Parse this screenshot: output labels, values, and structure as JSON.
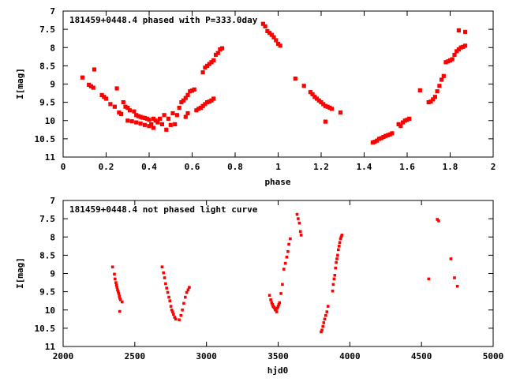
{
  "chart_data": [
    {
      "type": "scatter",
      "title": "181459+0448.4 phased with P=333.0day",
      "xlabel": "phase",
      "ylabel": "I[mag]",
      "xlim": [
        0,
        2
      ],
      "ylim": [
        11,
        7
      ],
      "y_inverted": true,
      "xticks": [
        "0",
        "0.2",
        "0.4",
        "0.6",
        "0.8",
        "1",
        "1.2",
        "1.4",
        "1.6",
        "1.8",
        "2"
      ],
      "yticks": [
        "7",
        "7.5",
        "8",
        "8.5",
        "9",
        "9.5",
        "10",
        "10.5",
        "11"
      ],
      "grid": false,
      "marker_color": "#ff0000",
      "points": [
        [
          0.09,
          8.82
        ],
        [
          0.12,
          9.02
        ],
        [
          0.13,
          9.06
        ],
        [
          0.14,
          9.1
        ],
        [
          0.145,
          8.6
        ],
        [
          0.18,
          9.3
        ],
        [
          0.19,
          9.35
        ],
        [
          0.2,
          9.4
        ],
        [
          0.22,
          9.55
        ],
        [
          0.24,
          9.62
        ],
        [
          0.25,
          9.12
        ],
        [
          0.26,
          9.78
        ],
        [
          0.27,
          9.82
        ],
        [
          0.28,
          9.5
        ],
        [
          0.29,
          9.62
        ],
        [
          0.3,
          9.65
        ],
        [
          0.3,
          10.0
        ],
        [
          0.31,
          9.72
        ],
        [
          0.32,
          10.02
        ],
        [
          0.33,
          9.75
        ],
        [
          0.34,
          10.05
        ],
        [
          0.34,
          9.85
        ],
        [
          0.35,
          9.88
        ],
        [
          0.36,
          9.9
        ],
        [
          0.36,
          10.08
        ],
        [
          0.37,
          9.92
        ],
        [
          0.38,
          9.93
        ],
        [
          0.38,
          10.12
        ],
        [
          0.39,
          9.95
        ],
        [
          0.4,
          9.98
        ],
        [
          0.4,
          10.15
        ],
        [
          0.41,
          10.1
        ],
        [
          0.42,
          9.95
        ],
        [
          0.42,
          10.2
        ],
        [
          0.43,
          10.0
        ],
        [
          0.44,
          10.05
        ],
        [
          0.45,
          9.95
        ],
        [
          0.46,
          10.1
        ],
        [
          0.47,
          9.85
        ],
        [
          0.48,
          10.25
        ],
        [
          0.49,
          9.95
        ],
        [
          0.5,
          10.12
        ],
        [
          0.51,
          9.8
        ],
        [
          0.52,
          10.1
        ],
        [
          0.53,
          9.85
        ],
        [
          0.54,
          9.65
        ],
        [
          0.55,
          9.5
        ],
        [
          0.56,
          9.45
        ],
        [
          0.57,
          9.38
        ],
        [
          0.58,
          9.3
        ],
        [
          0.59,
          9.2
        ],
        [
          0.6,
          9.18
        ],
        [
          0.61,
          9.15
        ],
        [
          0.57,
          9.9
        ],
        [
          0.58,
          9.8
        ],
        [
          0.62,
          9.72
        ],
        [
          0.63,
          9.68
        ],
        [
          0.64,
          9.65
        ],
        [
          0.65,
          9.6
        ],
        [
          0.66,
          9.55
        ],
        [
          0.67,
          9.5
        ],
        [
          0.68,
          9.48
        ],
        [
          0.69,
          9.45
        ],
        [
          0.7,
          9.4
        ],
        [
          0.65,
          8.68
        ],
        [
          0.66,
          8.55
        ],
        [
          0.67,
          8.5
        ],
        [
          0.68,
          8.45
        ],
        [
          0.69,
          8.4
        ],
        [
          0.7,
          8.35
        ],
        [
          0.71,
          8.2
        ],
        [
          0.72,
          8.15
        ],
        [
          0.73,
          8.05
        ],
        [
          0.74,
          8.02
        ],
        [
          0.93,
          7.35
        ],
        [
          0.94,
          7.42
        ],
        [
          0.95,
          7.55
        ],
        [
          0.96,
          7.6
        ],
        [
          0.97,
          7.65
        ],
        [
          0.98,
          7.72
        ],
        [
          0.99,
          7.8
        ],
        [
          1.0,
          7.9
        ],
        [
          1.01,
          7.95
        ],
        [
          1.08,
          8.85
        ],
        [
          1.12,
          9.05
        ],
        [
          1.15,
          9.22
        ],
        [
          1.16,
          9.28
        ],
        [
          1.17,
          9.35
        ],
        [
          1.18,
          9.4
        ],
        [
          1.19,
          9.45
        ],
        [
          1.2,
          9.5
        ],
        [
          1.21,
          9.55
        ],
        [
          1.22,
          9.6
        ],
        [
          1.23,
          9.62
        ],
        [
          1.24,
          9.65
        ],
        [
          1.25,
          9.68
        ],
        [
          1.22,
          10.03
        ],
        [
          1.29,
          9.78
        ],
        [
          1.44,
          10.6
        ],
        [
          1.45,
          10.58
        ],
        [
          1.46,
          10.55
        ],
        [
          1.47,
          10.5
        ],
        [
          1.48,
          10.48
        ],
        [
          1.49,
          10.45
        ],
        [
          1.5,
          10.42
        ],
        [
          1.51,
          10.4
        ],
        [
          1.52,
          10.38
        ],
        [
          1.53,
          10.35
        ],
        [
          1.56,
          10.1
        ],
        [
          1.57,
          10.15
        ],
        [
          1.58,
          10.05
        ],
        [
          1.59,
          10.0
        ],
        [
          1.6,
          9.98
        ],
        [
          1.61,
          9.95
        ],
        [
          1.66,
          9.17
        ],
        [
          1.7,
          9.5
        ],
        [
          1.71,
          9.48
        ],
        [
          1.72,
          9.42
        ],
        [
          1.73,
          9.35
        ],
        [
          1.74,
          9.2
        ],
        [
          1.75,
          9.05
        ],
        [
          1.76,
          8.88
        ],
        [
          1.77,
          8.78
        ],
        [
          1.78,
          8.4
        ],
        [
          1.79,
          8.38
        ],
        [
          1.8,
          8.35
        ],
        [
          1.81,
          8.32
        ],
        [
          1.82,
          8.2
        ],
        [
          1.83,
          8.1
        ],
        [
          1.84,
          8.05
        ],
        [
          1.85,
          8.0
        ],
        [
          1.86,
          7.98
        ],
        [
          1.87,
          7.95
        ],
        [
          1.84,
          7.53
        ],
        [
          1.87,
          7.57
        ]
      ]
    },
    {
      "type": "scatter",
      "title": "181459+0448.4 not phased light curve",
      "xlabel": "hjd0",
      "ylabel": "I[mag]",
      "xlim": [
        2000,
        5000
      ],
      "ylim": [
        11,
        7
      ],
      "y_inverted": true,
      "xticks": [
        "2000",
        "2500",
        "3000",
        "3500",
        "4000",
        "4500",
        "5000"
      ],
      "yticks": [
        "7",
        "7.5",
        "8",
        "8.5",
        "9",
        "9.5",
        "10",
        "10.5",
        "11"
      ],
      "grid": false,
      "marker_color": "#ff0000",
      "points": [
        [
          2345,
          8.82
        ],
        [
          2358,
          9.02
        ],
        [
          2362,
          9.15
        ],
        [
          2368,
          9.25
        ],
        [
          2372,
          9.32
        ],
        [
          2376,
          9.38
        ],
        [
          2380,
          9.45
        ],
        [
          2384,
          9.5
        ],
        [
          2388,
          9.55
        ],
        [
          2392,
          9.62
        ],
        [
          2396,
          9.68
        ],
        [
          2400,
          9.72
        ],
        [
          2395,
          10.04
        ],
        [
          2412,
          9.78
        ],
        [
          2690,
          8.82
        ],
        [
          2700,
          8.98
        ],
        [
          2708,
          9.12
        ],
        [
          2715,
          9.28
        ],
        [
          2722,
          9.4
        ],
        [
          2730,
          9.52
        ],
        [
          2738,
          9.65
        ],
        [
          2745,
          9.75
        ],
        [
          2752,
          9.9
        ],
        [
          2758,
          10.0
        ],
        [
          2764,
          10.05
        ],
        [
          2770,
          10.12
        ],
        [
          2778,
          10.2
        ],
        [
          2786,
          10.25
        ],
        [
          2810,
          10.27
        ],
        [
          2822,
          10.15
        ],
        [
          2832,
          10.0
        ],
        [
          2842,
          9.82
        ],
        [
          2852,
          9.65
        ],
        [
          2862,
          9.52
        ],
        [
          2872,
          9.45
        ],
        [
          2880,
          9.38
        ],
        [
          3440,
          9.6
        ],
        [
          3448,
          9.72
        ],
        [
          3455,
          9.8
        ],
        [
          3460,
          9.85
        ],
        [
          3465,
          9.9
        ],
        [
          3470,
          9.92
        ],
        [
          3475,
          9.95
        ],
        [
          3480,
          10.0
        ],
        [
          3485,
          9.98
        ],
        [
          3490,
          10.05
        ],
        [
          3495,
          9.95
        ],
        [
          3500,
          9.9
        ],
        [
          3505,
          9.85
        ],
        [
          3510,
          9.8
        ],
        [
          3520,
          9.55
        ],
        [
          3530,
          9.3
        ],
        [
          3540,
          8.88
        ],
        [
          3550,
          8.72
        ],
        [
          3560,
          8.55
        ],
        [
          3568,
          8.4
        ],
        [
          3575,
          8.2
        ],
        [
          3585,
          8.05
        ],
        [
          3632,
          7.38
        ],
        [
          3640,
          7.5
        ],
        [
          3648,
          7.62
        ],
        [
          3655,
          7.85
        ],
        [
          3660,
          7.95
        ],
        [
          3800,
          10.6
        ],
        [
          3806,
          10.55
        ],
        [
          3812,
          10.45
        ],
        [
          3818,
          10.35
        ],
        [
          3825,
          10.25
        ],
        [
          3832,
          10.15
        ],
        [
          3840,
          10.05
        ],
        [
          3848,
          9.9
        ],
        [
          3880,
          9.48
        ],
        [
          3885,
          9.3
        ],
        [
          3890,
          9.15
        ],
        [
          3895,
          9.05
        ],
        [
          3900,
          8.85
        ],
        [
          3905,
          8.7
        ],
        [
          3910,
          8.6
        ],
        [
          3915,
          8.5
        ],
        [
          3920,
          8.35
        ],
        [
          3925,
          8.25
        ],
        [
          3930,
          8.15
        ],
        [
          3935,
          8.05
        ],
        [
          3940,
          8.0
        ],
        [
          3945,
          7.95
        ],
        [
          4550,
          9.15
        ],
        [
          4610,
          7.52
        ],
        [
          4620,
          7.56
        ],
        [
          4705,
          8.6
        ],
        [
          4730,
          9.12
        ],
        [
          4750,
          9.35
        ]
      ]
    }
  ]
}
